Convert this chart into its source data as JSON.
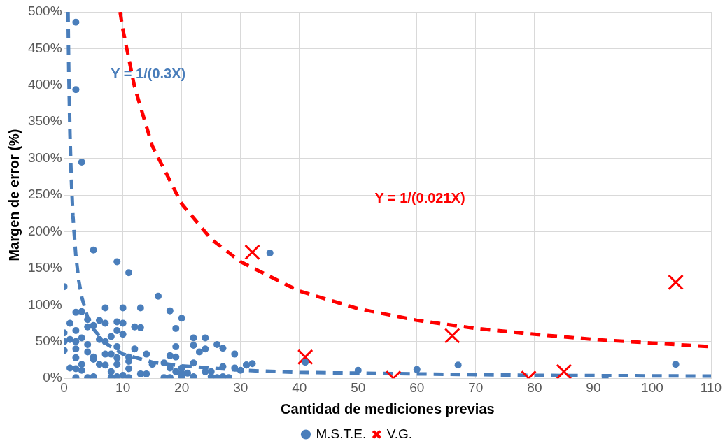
{
  "chart_data": {
    "type": "scatter",
    "xlabel": "Cantidad de mediciones previas",
    "ylabel": "Margen de error (%)",
    "xlim": [
      0,
      110
    ],
    "xticks": [
      0,
      10,
      20,
      30,
      40,
      50,
      60,
      70,
      80,
      90,
      100,
      110
    ],
    "ylim": [
      0,
      500
    ],
    "yticks": [
      {
        "value": 0,
        "label": "0%"
      },
      {
        "value": 50,
        "label": "50%"
      },
      {
        "value": 100,
        "label": "100%"
      },
      {
        "value": 150,
        "label": "150%"
      },
      {
        "value": 200,
        "label": "200%"
      },
      {
        "value": 250,
        "label": "250%"
      },
      {
        "value": 300,
        "label": "300%"
      },
      {
        "value": 350,
        "label": "350%"
      },
      {
        "value": 400,
        "label": "400%"
      },
      {
        "value": 450,
        "label": "450%"
      },
      {
        "value": 500,
        "label": "500%"
      }
    ],
    "grid": true,
    "legend": "bottom",
    "series": [
      {
        "name": "M.S.T.E.",
        "type": "scatter",
        "marker": "circle",
        "color": "#4a7ebb",
        "x": [
          2,
          2,
          3,
          0,
          5,
          9,
          11,
          16,
          35,
          104,
          92,
          67,
          60,
          50,
          41,
          31,
          32,
          2,
          3,
          7,
          10,
          13,
          18,
          20,
          19,
          12,
          13,
          1,
          4,
          6,
          7,
          9,
          10,
          2,
          4,
          5,
          9,
          10,
          0,
          0,
          0,
          1,
          2,
          3,
          4,
          6,
          7,
          8,
          9,
          8,
          7,
          5,
          4,
          2,
          12,
          14,
          19,
          22,
          24,
          22,
          23,
          24,
          26,
          27,
          29,
          2,
          3,
          1,
          2,
          3,
          2,
          4,
          5,
          5,
          6,
          7,
          9,
          9,
          11,
          8,
          8,
          9,
          10,
          11,
          11,
          11,
          13,
          14,
          15,
          17,
          18,
          17,
          18,
          18,
          19,
          19,
          20,
          20,
          22,
          22,
          24,
          25,
          26,
          27,
          28,
          29,
          30,
          31,
          21,
          20,
          25,
          27
        ],
        "values": [
          486,
          394,
          295,
          125,
          175,
          159,
          144,
          112,
          171,
          19,
          0,
          18,
          12,
          11,
          22,
          18,
          20,
          90,
          91,
          96,
          96,
          96,
          92,
          82,
          68,
          70,
          69,
          75,
          80,
          79,
          75,
          77,
          75,
          65,
          70,
          72,
          65,
          60,
          62,
          50,
          38,
          53,
          50,
          55,
          46,
          53,
          50,
          57,
          43,
          33,
          33,
          29,
          36,
          40,
          40,
          33,
          43,
          55,
          55,
          45,
          36,
          40,
          46,
          41,
          33,
          28,
          19,
          14,
          13,
          11,
          1,
          1,
          2,
          26,
          19,
          18,
          19,
          28,
          29,
          9,
          1,
          2,
          4,
          1,
          13,
          23,
          6,
          6,
          19,
          21,
          14,
          1,
          1,
          31,
          29,
          9,
          14,
          2,
          2,
          21,
          9,
          9,
          1,
          16,
          1,
          14,
          11,
          18,
          7,
          7,
          2,
          2
        ]
      },
      {
        "name": "V.G.",
        "type": "scatter",
        "marker": "cross",
        "color": "#ff0000",
        "x": [
          32,
          41,
          56,
          66,
          79,
          85,
          104
        ],
        "values": [
          172,
          29,
          0,
          58,
          0,
          9,
          131
        ]
      },
      {
        "type": "line",
        "marker": "none",
        "line_style": "dashed",
        "color": "#4a7ebb",
        "x": [
          0.67,
          0.8,
          1,
          1.2,
          1.5,
          2,
          2.5,
          3,
          4,
          5,
          7,
          10,
          15,
          20,
          30,
          40,
          60,
          80,
          110
        ],
        "values": [
          500,
          417,
          333,
          278,
          222,
          167,
          133,
          111,
          83,
          67,
          48,
          33,
          22,
          17,
          11,
          8,
          6,
          4,
          3
        ]
      },
      {
        "type": "line",
        "marker": "none",
        "line_style": "dashed",
        "color": "#ff0000",
        "x": [
          9.52,
          10,
          12,
          15,
          20,
          25,
          30,
          40,
          50,
          60,
          70,
          80,
          90,
          100,
          110
        ],
        "values": [
          500,
          476,
          397,
          317,
          238,
          190,
          159,
          119,
          95,
          79,
          68,
          60,
          53,
          48,
          43
        ]
      }
    ],
    "annotations": [
      "Y = 1/(0.3X)",
      "Y = 1/(0.021X)"
    ]
  }
}
